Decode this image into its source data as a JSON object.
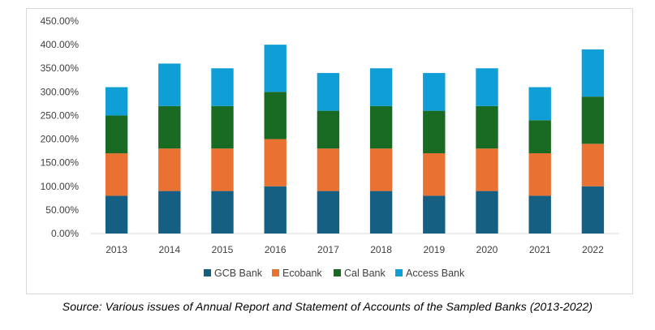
{
  "chart_data": {
    "type": "bar",
    "stacked": true,
    "title": "",
    "xlabel": "",
    "ylabel": "",
    "categories": [
      "2013",
      "2014",
      "2015",
      "2016",
      "2017",
      "2018",
      "2019",
      "2020",
      "2021",
      "2022"
    ],
    "series": [
      {
        "name": "GCB Bank",
        "color": "#156082",
        "values": [
          80,
          90,
          90,
          100,
          90,
          90,
          80,
          90,
          80,
          100
        ]
      },
      {
        "name": "Ecobank",
        "color": "#e97132",
        "values": [
          90,
          90,
          90,
          100,
          90,
          90,
          90,
          90,
          90,
          90
        ]
      },
      {
        "name": "Cal Bank",
        "color": "#196b24",
        "values": [
          80,
          90,
          90,
          100,
          80,
          90,
          90,
          90,
          70,
          100
        ]
      },
      {
        "name": "Access Bank",
        "color": "#0f9ed5",
        "values": [
          60,
          90,
          80,
          100,
          80,
          80,
          80,
          80,
          70,
          100
        ]
      }
    ],
    "ylim": [
      0,
      450
    ],
    "yticks": [
      0,
      50,
      100,
      150,
      200,
      250,
      300,
      350,
      400,
      450
    ],
    "ytick_labels": [
      "0.00%",
      "50.00%",
      "100.00%",
      "150.00%",
      "200.00%",
      "250.00%",
      "300.00%",
      "350.00%",
      "400.00%",
      "450.00%"
    ],
    "grid": false,
    "legend_position": "bottom"
  },
  "source_note": "Source: Various issues of Annual Report and Statement of Accounts of the Sampled Banks (2013-2022)"
}
